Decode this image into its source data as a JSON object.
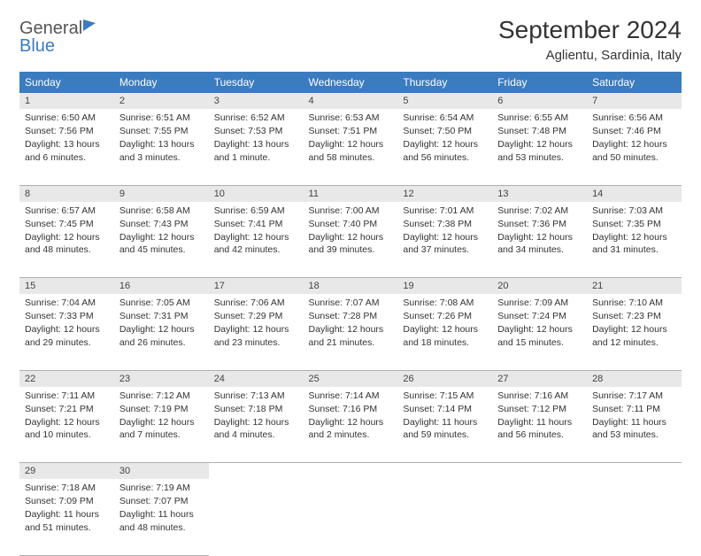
{
  "logo": {
    "text_gray": "General",
    "text_blue": "Blue"
  },
  "header": {
    "title": "September 2024",
    "location": "Aglientu, Sardinia, Italy"
  },
  "columns": [
    "Sunday",
    "Monday",
    "Tuesday",
    "Wednesday",
    "Thursday",
    "Friday",
    "Saturday"
  ],
  "colors": {
    "header_bg": "#3b7bbf",
    "header_fg": "#ffffff",
    "daynum_bg": "#e8e8e8",
    "border": "#b0b0b0",
    "text": "#333333"
  },
  "weeks": [
    [
      {
        "n": "1",
        "sunrise": "Sunrise: 6:50 AM",
        "sunset": "Sunset: 7:56 PM",
        "daylight": "Daylight: 13 hours and 6 minutes."
      },
      {
        "n": "2",
        "sunrise": "Sunrise: 6:51 AM",
        "sunset": "Sunset: 7:55 PM",
        "daylight": "Daylight: 13 hours and 3 minutes."
      },
      {
        "n": "3",
        "sunrise": "Sunrise: 6:52 AM",
        "sunset": "Sunset: 7:53 PM",
        "daylight": "Daylight: 13 hours and 1 minute."
      },
      {
        "n": "4",
        "sunrise": "Sunrise: 6:53 AM",
        "sunset": "Sunset: 7:51 PM",
        "daylight": "Daylight: 12 hours and 58 minutes."
      },
      {
        "n": "5",
        "sunrise": "Sunrise: 6:54 AM",
        "sunset": "Sunset: 7:50 PM",
        "daylight": "Daylight: 12 hours and 56 minutes."
      },
      {
        "n": "6",
        "sunrise": "Sunrise: 6:55 AM",
        "sunset": "Sunset: 7:48 PM",
        "daylight": "Daylight: 12 hours and 53 minutes."
      },
      {
        "n": "7",
        "sunrise": "Sunrise: 6:56 AM",
        "sunset": "Sunset: 7:46 PM",
        "daylight": "Daylight: 12 hours and 50 minutes."
      }
    ],
    [
      {
        "n": "8",
        "sunrise": "Sunrise: 6:57 AM",
        "sunset": "Sunset: 7:45 PM",
        "daylight": "Daylight: 12 hours and 48 minutes."
      },
      {
        "n": "9",
        "sunrise": "Sunrise: 6:58 AM",
        "sunset": "Sunset: 7:43 PM",
        "daylight": "Daylight: 12 hours and 45 minutes."
      },
      {
        "n": "10",
        "sunrise": "Sunrise: 6:59 AM",
        "sunset": "Sunset: 7:41 PM",
        "daylight": "Daylight: 12 hours and 42 minutes."
      },
      {
        "n": "11",
        "sunrise": "Sunrise: 7:00 AM",
        "sunset": "Sunset: 7:40 PM",
        "daylight": "Daylight: 12 hours and 39 minutes."
      },
      {
        "n": "12",
        "sunrise": "Sunrise: 7:01 AM",
        "sunset": "Sunset: 7:38 PM",
        "daylight": "Daylight: 12 hours and 37 minutes."
      },
      {
        "n": "13",
        "sunrise": "Sunrise: 7:02 AM",
        "sunset": "Sunset: 7:36 PM",
        "daylight": "Daylight: 12 hours and 34 minutes."
      },
      {
        "n": "14",
        "sunrise": "Sunrise: 7:03 AM",
        "sunset": "Sunset: 7:35 PM",
        "daylight": "Daylight: 12 hours and 31 minutes."
      }
    ],
    [
      {
        "n": "15",
        "sunrise": "Sunrise: 7:04 AM",
        "sunset": "Sunset: 7:33 PM",
        "daylight": "Daylight: 12 hours and 29 minutes."
      },
      {
        "n": "16",
        "sunrise": "Sunrise: 7:05 AM",
        "sunset": "Sunset: 7:31 PM",
        "daylight": "Daylight: 12 hours and 26 minutes."
      },
      {
        "n": "17",
        "sunrise": "Sunrise: 7:06 AM",
        "sunset": "Sunset: 7:29 PM",
        "daylight": "Daylight: 12 hours and 23 minutes."
      },
      {
        "n": "18",
        "sunrise": "Sunrise: 7:07 AM",
        "sunset": "Sunset: 7:28 PM",
        "daylight": "Daylight: 12 hours and 21 minutes."
      },
      {
        "n": "19",
        "sunrise": "Sunrise: 7:08 AM",
        "sunset": "Sunset: 7:26 PM",
        "daylight": "Daylight: 12 hours and 18 minutes."
      },
      {
        "n": "20",
        "sunrise": "Sunrise: 7:09 AM",
        "sunset": "Sunset: 7:24 PM",
        "daylight": "Daylight: 12 hours and 15 minutes."
      },
      {
        "n": "21",
        "sunrise": "Sunrise: 7:10 AM",
        "sunset": "Sunset: 7:23 PM",
        "daylight": "Daylight: 12 hours and 12 minutes."
      }
    ],
    [
      {
        "n": "22",
        "sunrise": "Sunrise: 7:11 AM",
        "sunset": "Sunset: 7:21 PM",
        "daylight": "Daylight: 12 hours and 10 minutes."
      },
      {
        "n": "23",
        "sunrise": "Sunrise: 7:12 AM",
        "sunset": "Sunset: 7:19 PM",
        "daylight": "Daylight: 12 hours and 7 minutes."
      },
      {
        "n": "24",
        "sunrise": "Sunrise: 7:13 AM",
        "sunset": "Sunset: 7:18 PM",
        "daylight": "Daylight: 12 hours and 4 minutes."
      },
      {
        "n": "25",
        "sunrise": "Sunrise: 7:14 AM",
        "sunset": "Sunset: 7:16 PM",
        "daylight": "Daylight: 12 hours and 2 minutes."
      },
      {
        "n": "26",
        "sunrise": "Sunrise: 7:15 AM",
        "sunset": "Sunset: 7:14 PM",
        "daylight": "Daylight: 11 hours and 59 minutes."
      },
      {
        "n": "27",
        "sunrise": "Sunrise: 7:16 AM",
        "sunset": "Sunset: 7:12 PM",
        "daylight": "Daylight: 11 hours and 56 minutes."
      },
      {
        "n": "28",
        "sunrise": "Sunrise: 7:17 AM",
        "sunset": "Sunset: 7:11 PM",
        "daylight": "Daylight: 11 hours and 53 minutes."
      }
    ],
    [
      {
        "n": "29",
        "sunrise": "Sunrise: 7:18 AM",
        "sunset": "Sunset: 7:09 PM",
        "daylight": "Daylight: 11 hours and 51 minutes."
      },
      {
        "n": "30",
        "sunrise": "Sunrise: 7:19 AM",
        "sunset": "Sunset: 7:07 PM",
        "daylight": "Daylight: 11 hours and 48 minutes."
      },
      null,
      null,
      null,
      null,
      null
    ]
  ]
}
